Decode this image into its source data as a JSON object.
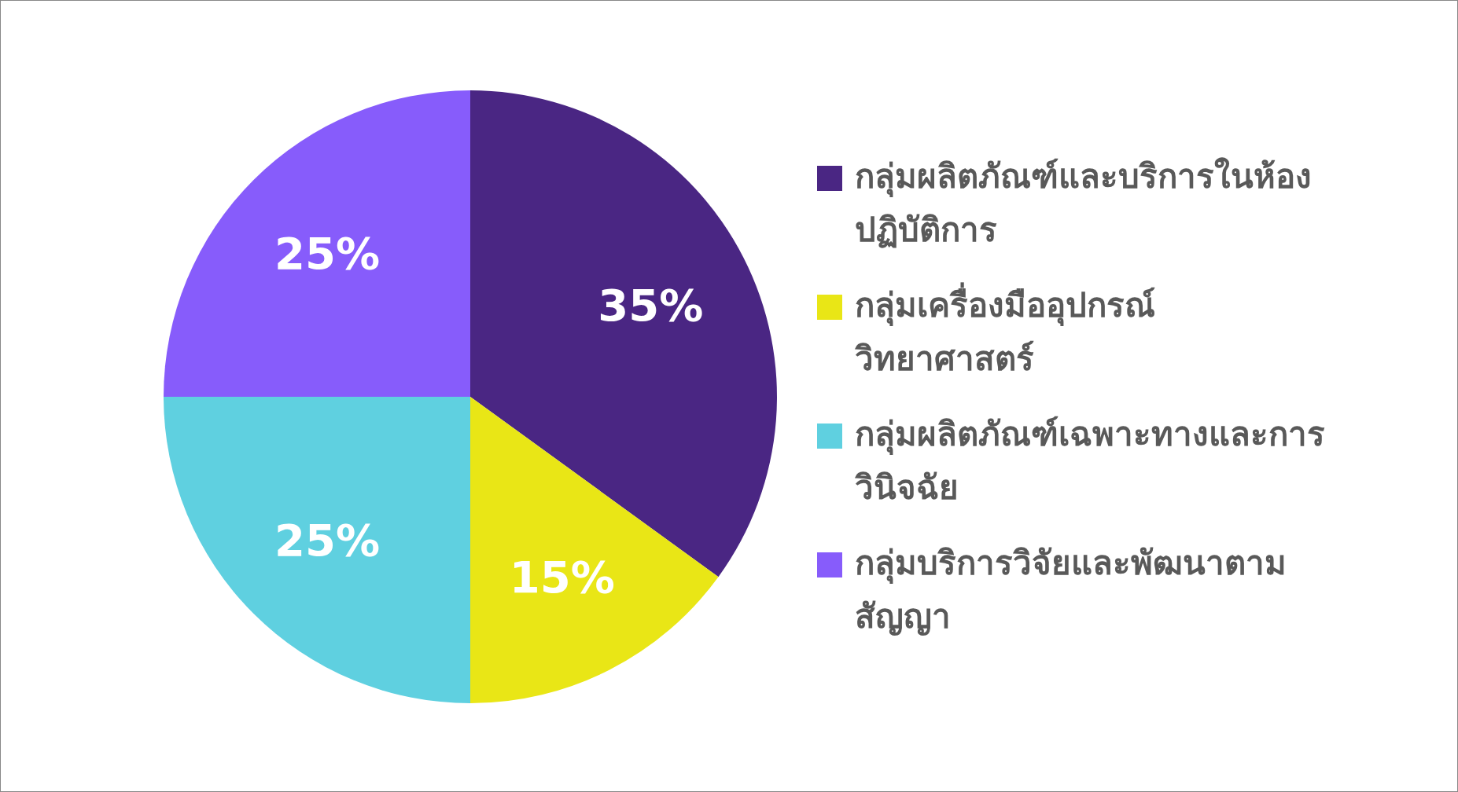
{
  "chart_data": {
    "type": "pie",
    "categories": [
      "กลุ่มผลิตภัณฑ์และบริการในห้องปฏิบัติการ",
      "กลุ่มเครื่องมืออุปกรณ์วิทยาศาสตร์",
      "กลุ่มผลิตภัณฑ์เฉพาะทางและการวินิจฉัย",
      "กลุ่มบริการวิจัยและพัฒนาตามสัญญา"
    ],
    "values": [
      35,
      15,
      25,
      25
    ],
    "colors": [
      "#4a2683",
      "#e9e616",
      "#5fd0e0",
      "#875cfb"
    ],
    "value_labels": [
      "35%",
      "15%",
      "25%",
      "25%"
    ],
    "legend": "right"
  }
}
